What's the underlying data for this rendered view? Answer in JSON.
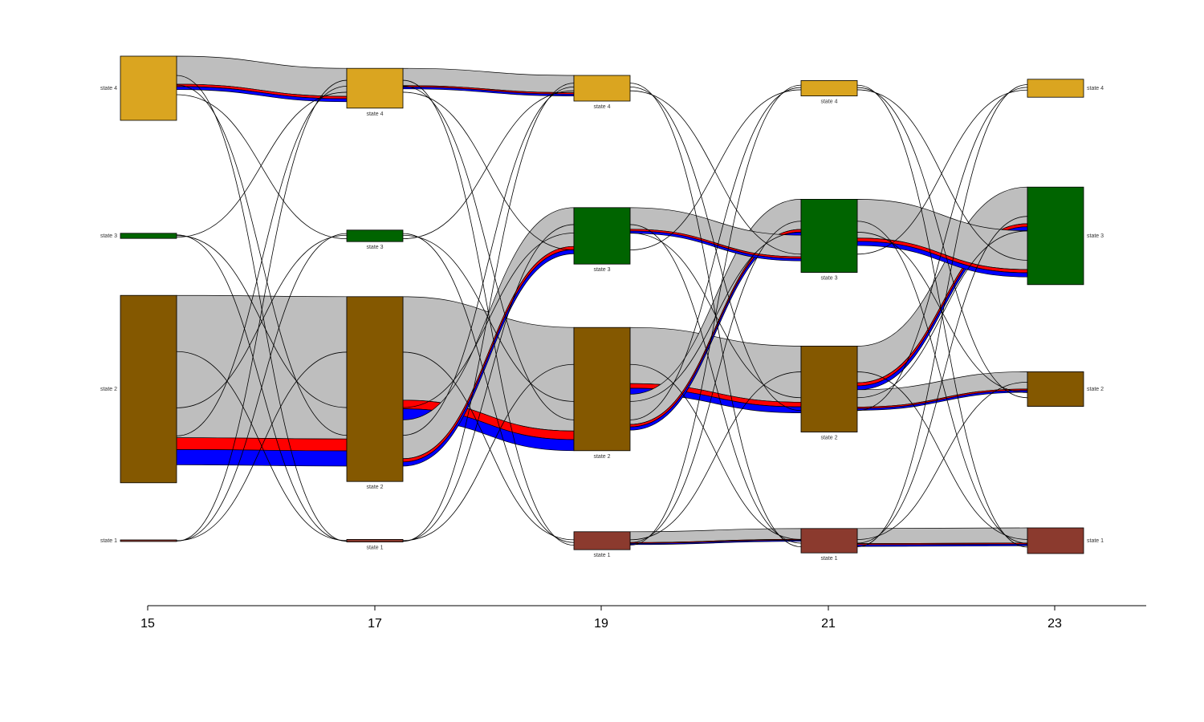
{
  "chart_data": {
    "type": "sankey",
    "title": "",
    "xlabel": "",
    "ylabel": "",
    "x_ticks": [
      "15",
      "17",
      "19",
      "21",
      "23"
    ],
    "state_labels": [
      "state 1",
      "state 2",
      "state 3",
      "state 4"
    ],
    "colors": {
      "state 1": "#8B3A2E",
      "state 2": "#845800",
      "state 3": "#006400",
      "state 4": "#DAA520",
      "flow_main": "#BEBEBE",
      "flow_red": "#FF0000",
      "flow_blue": "#0000FF"
    },
    "node_sizes": [
      {
        "time": "15",
        "state 1": 0.002,
        "state 2": 0.73,
        "state 3": 0.02,
        "state 4": 0.25
      },
      {
        "time": "17",
        "state 1": 0.01,
        "state 2": 0.72,
        "state 3": 0.045,
        "state 4": 0.155
      },
      {
        "time": "19",
        "state 1": 0.07,
        "state 2": 0.48,
        "state 3": 0.22,
        "state 4": 0.1
      },
      {
        "time": "21",
        "state 1": 0.095,
        "state 2": 0.335,
        "state 3": 0.285,
        "state 4": 0.06
      },
      {
        "time": "23",
        "state 1": 0.1,
        "state 2": 0.135,
        "state 3": 0.38,
        "state 4": 0.07
      }
    ],
    "flows": [
      {
        "from_time": "15",
        "to_time": "17",
        "from": "state 2",
        "to": "state 2",
        "value": 0.66
      },
      {
        "from_time": "15",
        "to_time": "17",
        "from": "state 4",
        "to": "state 4",
        "value": 0.13
      },
      {
        "from_time": "17",
        "to_time": "19",
        "from": "state 2",
        "to": "state 2",
        "value": 0.48
      },
      {
        "from_time": "17",
        "to_time": "19",
        "from": "state 2",
        "to": "state 3",
        "value": 0.18
      },
      {
        "from_time": "17",
        "to_time": "19",
        "from": "state 4",
        "to": "state 4",
        "value": 0.08
      },
      {
        "from_time": "19",
        "to_time": "21",
        "from": "state 2",
        "to": "state 2",
        "value": 0.26
      },
      {
        "from_time": "19",
        "to_time": "21",
        "from": "state 2",
        "to": "state 3",
        "value": 0.14
      },
      {
        "from_time": "19",
        "to_time": "21",
        "from": "state 3",
        "to": "state 3",
        "value": 0.1
      },
      {
        "from_time": "19",
        "to_time": "21",
        "from": "state 1",
        "to": "state 1",
        "value": 0.05
      },
      {
        "from_time": "21",
        "to_time": "23",
        "from": "state 2",
        "to": "state 3",
        "value": 0.17
      },
      {
        "from_time": "21",
        "to_time": "23",
        "from": "state 2",
        "to": "state 2",
        "value": 0.08
      },
      {
        "from_time": "21",
        "to_time": "23",
        "from": "state 3",
        "to": "state 3",
        "value": 0.18
      },
      {
        "from_time": "21",
        "to_time": "23",
        "from": "state 1",
        "to": "state 1",
        "value": 0.07
      }
    ]
  }
}
